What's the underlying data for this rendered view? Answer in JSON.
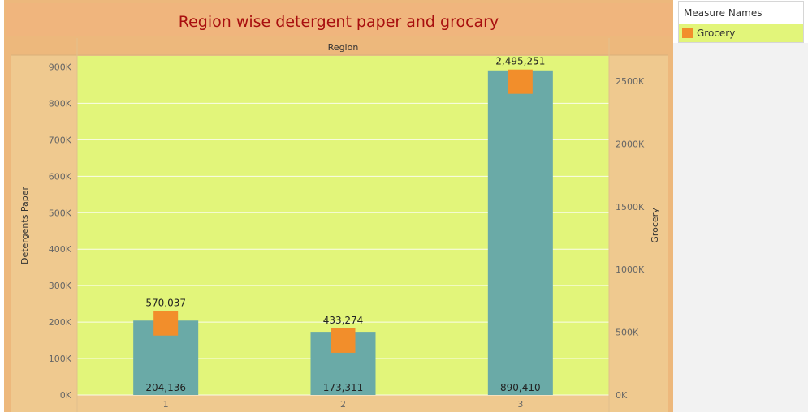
{
  "title": "Region wise detergent paper and grocary",
  "legend": {
    "title": "Measure Names",
    "items": [
      {
        "label": "Grocery",
        "color": "#f28e2b"
      }
    ]
  },
  "colors": {
    "bar": "#6aaaa7",
    "marker": "#f28e2b",
    "plot_bg": "#e2f57a",
    "frame": "#edb87c",
    "title": "#a80f0f"
  },
  "chart_data": {
    "type": "bar",
    "header": "Region",
    "categories": [
      "1",
      "2",
      "3"
    ],
    "series": [
      {
        "name": "Detergents Paper",
        "values": [
          204136,
          173311,
          890410
        ],
        "labels": [
          "204,136",
          "173,311",
          "890,410"
        ],
        "axis": "left"
      },
      {
        "name": "Grocery",
        "values": [
          570037,
          433274,
          2495251
        ],
        "labels": [
          "570,037",
          "433,274",
          "2,495,251"
        ],
        "axis": "right"
      }
    ],
    "ylabel": "Detergents Paper",
    "ylabel_right": "Grocery",
    "ylim": [
      0,
      930000
    ],
    "ylim_right": [
      0,
      2700000
    ],
    "yticks": [
      0,
      100000,
      200000,
      300000,
      400000,
      500000,
      600000,
      700000,
      800000,
      900000
    ],
    "ytick_labels": [
      "0K",
      "100K",
      "200K",
      "300K",
      "400K",
      "500K",
      "600K",
      "700K",
      "800K",
      "900K"
    ],
    "yticks_right": [
      0,
      500000,
      1000000,
      1500000,
      2000000,
      2500000
    ],
    "ytick_labels_right": [
      "0K",
      "500K",
      "1000K",
      "1500K",
      "2000K",
      "2500K"
    ],
    "grid": true
  }
}
